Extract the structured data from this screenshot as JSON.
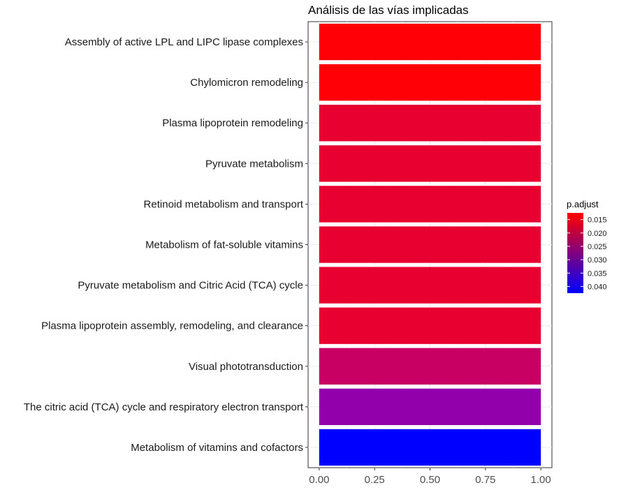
{
  "chart_data": {
    "type": "bar",
    "orientation": "horizontal",
    "title": "Análisis de las vías implicadas",
    "xlabel": "",
    "ylabel": "",
    "xlim": [
      0,
      1
    ],
    "x_ticks": [
      "0.00",
      "0.25",
      "0.50",
      "0.75",
      "1.00"
    ],
    "x_tick_values": [
      0,
      0.25,
      0.5,
      0.75,
      1.0
    ],
    "grid": true,
    "legend_position": "right",
    "color_legend": {
      "title": "p.adjust",
      "labels": [
        "0.015",
        "0.020",
        "0.025",
        "0.030",
        "0.035",
        "0.040"
      ],
      "tick_values": [
        0.015,
        0.02,
        0.025,
        0.03,
        0.035,
        0.04
      ],
      "range": [
        0.0125,
        0.0425
      ],
      "low_color": "#ff0000",
      "high_color": "#0000ff"
    },
    "categories": [
      "Assembly of active LPL and LIPC lipase complexes",
      "Chylomicron remodeling",
      "Plasma lipoprotein remodeling",
      "Pyruvate metabolism",
      "Retinoid metabolism and transport",
      "Metabolism of fat-soluble vitamins",
      "Pyruvate metabolism and Citric Acid (TCA) cycle",
      "Plasma lipoprotein assembly, remodeling, and clearance",
      "Visual phototransduction",
      "The citric acid (TCA) cycle and respiratory electron transport",
      "Metabolism of vitamins and cofactors"
    ],
    "values": [
      1,
      1,
      1,
      1,
      1,
      1,
      1,
      1,
      1,
      1,
      1
    ],
    "p_adjust": [
      0.0126,
      0.0126,
      0.0158,
      0.0158,
      0.0158,
      0.0158,
      0.0158,
      0.0158,
      0.0212,
      0.0306,
      0.042
    ],
    "colors": [
      "#ff0007",
      "#ff0007",
      "#e80031",
      "#e80031",
      "#e80031",
      "#e80031",
      "#e80031",
      "#e80031",
      "#c80064",
      "#9200ac",
      "#0000ff"
    ]
  }
}
